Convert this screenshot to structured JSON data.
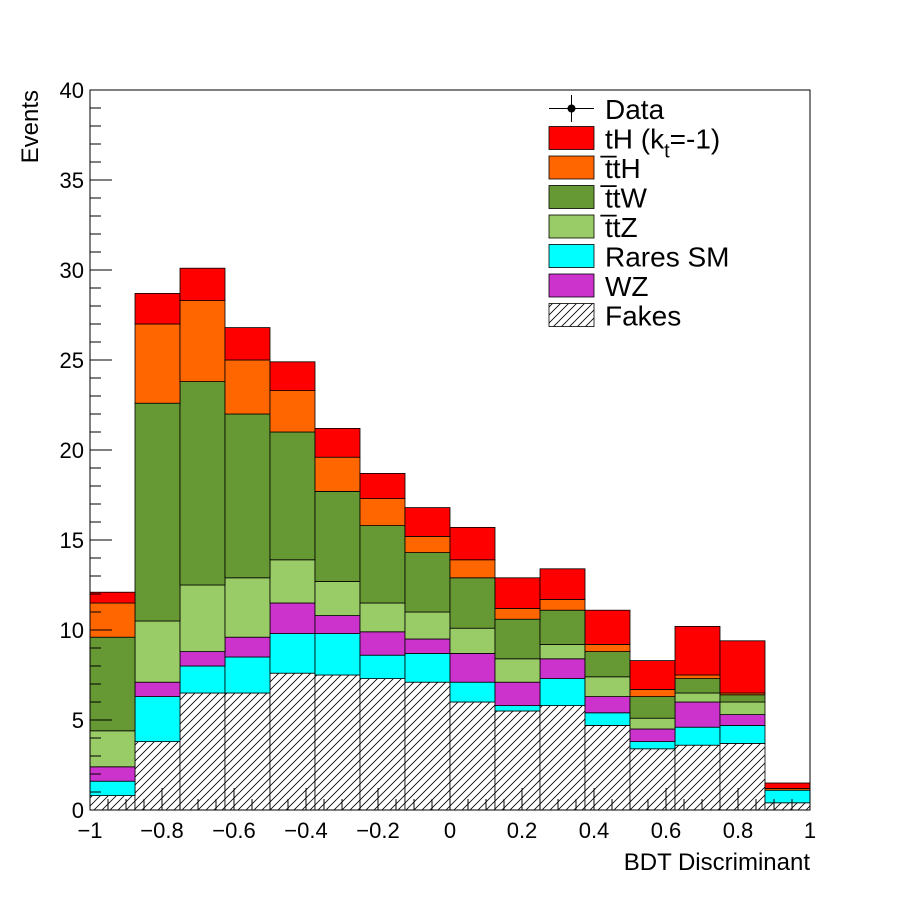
{
  "chart_data": {
    "type": "bar",
    "stacked": true,
    "xlabel": "BDT Discriminant",
    "ylabel": "Events",
    "xlim": [
      -1,
      1
    ],
    "ylim": [
      0,
      40
    ],
    "x_edges": [
      -1.0,
      -0.875,
      -0.75,
      -0.625,
      -0.5,
      -0.375,
      -0.25,
      -0.125,
      0.0,
      0.125,
      0.25,
      0.375,
      0.5,
      0.625,
      0.75,
      0.875,
      1.0
    ],
    "x_ticks": [
      -1,
      -0.8,
      -0.6,
      -0.4,
      -0.2,
      0,
      0.2,
      0.4,
      0.6,
      0.8,
      1
    ],
    "x_tick_labels": [
      "−1",
      "−0.8",
      "−0.6",
      "−0.4",
      "−0.2",
      "0",
      "0.2",
      "0.4",
      "0.6",
      "0.8",
      "1"
    ],
    "y_ticks": [
      0,
      5,
      10,
      15,
      20,
      25,
      30,
      35,
      40
    ],
    "y_tick_labels": [
      "0",
      "5",
      "10",
      "15",
      "20",
      "25",
      "30",
      "35",
      "40"
    ],
    "legend_position": "top-right",
    "legend": [
      {
        "label": "Data",
        "marker": "point"
      },
      {
        "label": "tH (k",
        "sub": "t",
        "rest": "=-1)",
        "color": "#ff0000"
      },
      {
        "label": "t̅tH",
        "color": "#ff6600"
      },
      {
        "label": "t̅tW",
        "color": "#669933"
      },
      {
        "label": "t̅tZ",
        "color": "#99cc66"
      },
      {
        "label": "Rares SM",
        "color": "#00ffff"
      },
      {
        "label": "WZ",
        "color": "#cc33cc"
      },
      {
        "label": "Fakes",
        "color": "#ffffff",
        "hatch": true
      }
    ],
    "series_cumulative_tops": [
      {
        "name": "Fakes",
        "values": [
          0.8,
          3.8,
          6.5,
          6.5,
          7.6,
          7.5,
          7.3,
          7.1,
          6.0,
          5.5,
          5.8,
          4.7,
          3.4,
          3.6,
          3.7,
          0.4
        ]
      },
      {
        "name": "Rares SM",
        "values": [
          1.6,
          6.3,
          8.0,
          8.5,
          9.8,
          9.8,
          8.6,
          8.7,
          7.1,
          5.8,
          7.3,
          5.4,
          3.8,
          4.6,
          4.7,
          1.1
        ]
      },
      {
        "name": "WZ",
        "values": [
          2.4,
          7.1,
          8.8,
          9.6,
          11.5,
          10.8,
          9.9,
          9.5,
          8.7,
          7.1,
          8.4,
          6.3,
          4.5,
          6.0,
          5.3,
          1.1
        ]
      },
      {
        "name": "t̅tZ",
        "values": [
          4.4,
          10.5,
          12.5,
          12.9,
          13.9,
          12.7,
          11.5,
          11.0,
          10.1,
          8.4,
          9.2,
          7.4,
          5.1,
          6.5,
          6.0,
          1.1
        ]
      },
      {
        "name": "t̅tW",
        "values": [
          9.6,
          22.6,
          23.8,
          22.0,
          21.0,
          17.7,
          15.8,
          14.3,
          12.9,
          10.6,
          11.1,
          8.8,
          6.3,
          7.3,
          6.4,
          1.1
        ]
      },
      {
        "name": "t̅tH",
        "values": [
          11.5,
          27.0,
          28.3,
          25.0,
          23.3,
          19.6,
          17.3,
          15.2,
          13.9,
          11.2,
          11.7,
          9.2,
          6.7,
          7.5,
          6.5,
          1.2
        ]
      },
      {
        "name": "tH (k_t=-1)",
        "values": [
          12.1,
          28.7,
          30.1,
          26.8,
          24.9,
          21.2,
          18.7,
          16.8,
          15.7,
          12.9,
          13.4,
          11.1,
          8.3,
          10.2,
          9.4,
          1.5
        ]
      }
    ]
  }
}
